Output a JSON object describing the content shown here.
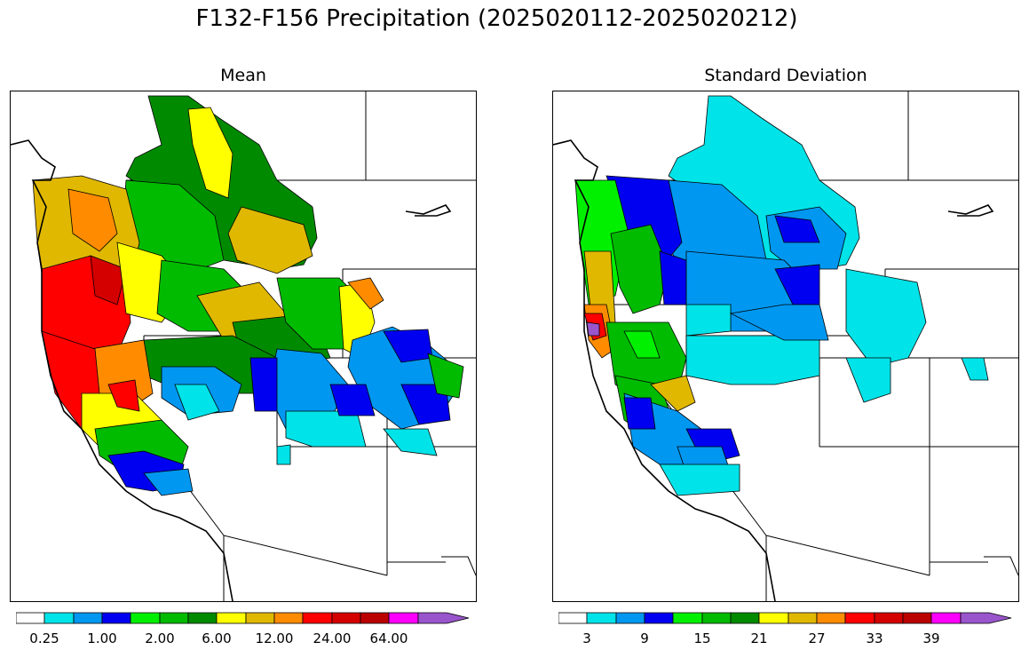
{
  "figure": {
    "title": "F132-F156 Precipitation (2025020112-2025020212)"
  },
  "colors": {
    "white": "#ffffff",
    "cyan": "#00e3e8",
    "lightblue": "#0097f0",
    "blue": "#0000f0",
    "lime": "#00f000",
    "green": "#00bb00",
    "darkgreen": "#008a00",
    "yellow": "#ffff00",
    "gold": "#e0b800",
    "orange": "#ff8c00",
    "red": "#ff0000",
    "crimson": "#d40000",
    "darkred": "#bb0000",
    "magenta": "#ff00ff",
    "purple": "#9955cc"
  },
  "panels": [
    {
      "title": "Mean",
      "colorbar": {
        "tick_labels": [
          "0.25",
          "1.00",
          "2.00",
          "6.00",
          "12.00",
          "24.00",
          "64.00"
        ],
        "extend": "max"
      }
    },
    {
      "title": "Standard Deviation",
      "colorbar": {
        "tick_labels": [
          "3",
          "9",
          "15",
          "21",
          "27",
          "33",
          "39"
        ],
        "extend": "max"
      }
    }
  ]
}
